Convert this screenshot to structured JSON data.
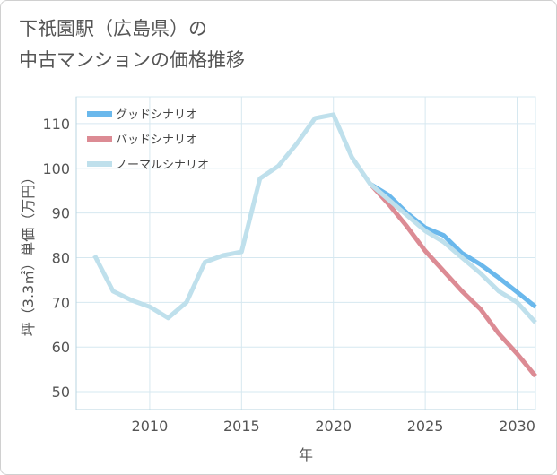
{
  "title_lines": [
    "下祇園駅（広島県）の",
    "中古マンションの価格推移"
  ],
  "colors": {
    "good": "#6ab8ec",
    "bad": "#dc8b94",
    "normal": "#bfe0ec",
    "grid": "#d6e8f0",
    "border": "#d0d0d0"
  },
  "chart_data": {
    "type": "line",
    "title": "下祇園駅（広島県）の中古マンションの価格推移",
    "xlabel": "年",
    "ylabel": "坪（3.3㎡）単価（万円）",
    "xlim": [
      2006,
      2031
    ],
    "ylim": [
      46,
      116
    ],
    "xticks": [
      2010,
      2015,
      2020,
      2025,
      2030
    ],
    "yticks": [
      50,
      60,
      70,
      80,
      90,
      100,
      110
    ],
    "grid": true,
    "legend_position": "top-left",
    "series": [
      {
        "name": "グッドシナリオ",
        "color_key": "good",
        "x": [
          2022,
          2023,
          2024,
          2025,
          2026,
          2027,
          2028,
          2029,
          2030,
          2031
        ],
        "y": [
          96.5,
          94,
          90,
          86.7,
          85,
          81,
          78.5,
          75.5,
          72.3,
          69
        ]
      },
      {
        "name": "バッドシナリオ",
        "color_key": "bad",
        "x": [
          2022,
          2023,
          2024,
          2025,
          2026,
          2027,
          2028,
          2029,
          2030,
          2031
        ],
        "y": [
          96.5,
          92,
          87,
          81.5,
          77,
          72.5,
          68.5,
          63,
          58.5,
          53.5
        ]
      },
      {
        "name": "ノーマルシナリオ",
        "color_key": "normal",
        "x": [
          2007,
          2008,
          2009,
          2010,
          2011,
          2012,
          2013,
          2014,
          2015,
          2016,
          2017,
          2018,
          2019,
          2020,
          2021,
          2022,
          2023,
          2024,
          2025,
          2026,
          2027,
          2028,
          2029,
          2030,
          2031
        ],
        "y": [
          80.5,
          72.5,
          70.5,
          69,
          66.5,
          70,
          79,
          80.5,
          81.3,
          97.7,
          100.5,
          105.5,
          111.2,
          112,
          102.5,
          96.5,
          93,
          89.5,
          86,
          83.5,
          80,
          76.5,
          72.5,
          70,
          65.5
        ]
      }
    ]
  }
}
